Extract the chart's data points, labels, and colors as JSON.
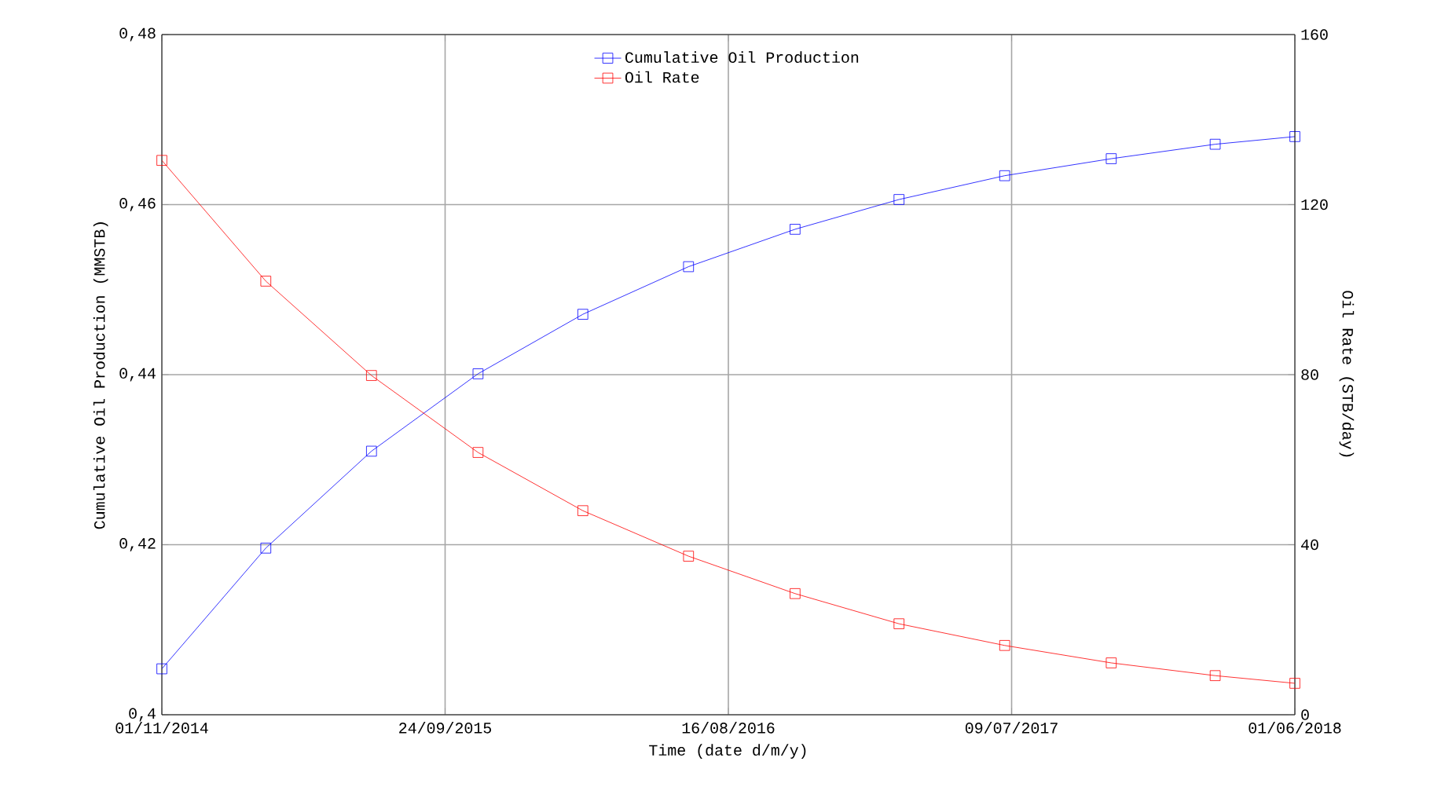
{
  "chart_data": {
    "type": "line",
    "xlabel": "Time (date d/m/y)",
    "ylabel": "Cumulative Oil Production (MMSTB)",
    "y2label": "Oil Rate (STB/day)",
    "x": [
      "2014-11-01",
      "2015-03-01",
      "2015-07-01",
      "2015-11-01",
      "2016-03-01",
      "2016-07-01",
      "2016-11-01",
      "2017-03-01",
      "2017-07-01",
      "2017-11-01",
      "2018-03-01",
      "2018-06-01"
    ],
    "series": [
      {
        "name": "Cumulative Oil Production",
        "color": "#0000ff",
        "values": [
          0.4054,
          0.4196,
          0.431,
          0.4401,
          0.4471,
          0.4527,
          0.4571,
          0.4606,
          0.4634,
          0.4654,
          0.4671,
          0.468
        ]
      },
      {
        "name": "Oil Rate",
        "color": "#ff0000",
        "axis": "y2",
        "values": [
          130.4,
          102,
          79.8,
          61.7,
          48,
          37.3,
          28.5,
          21.4,
          16.3,
          12.2,
          9.2,
          7.4
        ]
      }
    ],
    "xlim": [
      "2014-11-01",
      "2018-06-01"
    ],
    "xticks": [
      {
        "value": "2014-11-01",
        "label": "01/11/2014"
      },
      {
        "value": "2015-09-24",
        "label": "24/09/2015"
      },
      {
        "value": "2016-08-16",
        "label": "16/08/2016"
      },
      {
        "value": "2017-07-09",
        "label": "09/07/2017"
      },
      {
        "value": "2018-06-01",
        "label": "01/06/2018"
      }
    ],
    "ylim": [
      0.4,
      0.48
    ],
    "yticks": [
      {
        "value": 0.4,
        "label": "0,4"
      },
      {
        "value": 0.42,
        "label": "0,42"
      },
      {
        "value": 0.44,
        "label": "0,44"
      },
      {
        "value": 0.46,
        "label": "0,46"
      },
      {
        "value": 0.48,
        "label": "0,48"
      }
    ],
    "y2lim": [
      0,
      160
    ],
    "y2ticks": [
      0,
      40,
      80,
      120,
      160
    ],
    "grid": true,
    "legend": "top",
    "marker": "square",
    "line_style": "solid"
  }
}
